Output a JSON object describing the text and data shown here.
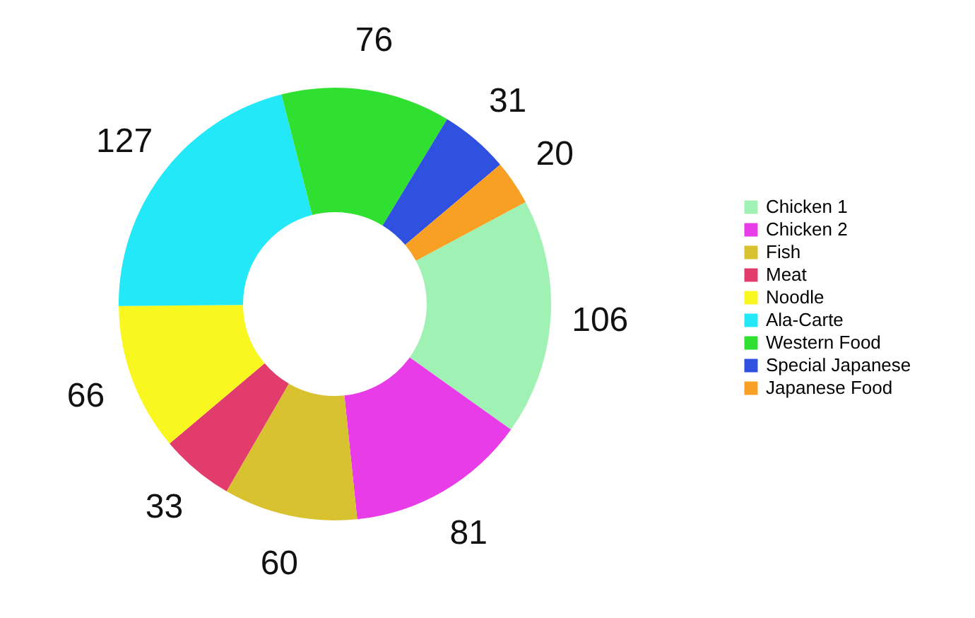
{
  "chart_data": {
    "type": "donut",
    "categories": [
      "Chicken 1",
      "Chicken 2",
      "Fish",
      "Meat",
      "Noodle",
      "Ala-Carte",
      "Western Food",
      "Special Japanese",
      "Japanese Food"
    ],
    "values": [
      106,
      81,
      60,
      33,
      66,
      127,
      76,
      31,
      20
    ],
    "colors": [
      "#a0f2b4",
      "#e83ce8",
      "#d9c230",
      "#e23c6c",
      "#f8f820",
      "#22e8f8",
      "#30e030",
      "#3050e0",
      "#f8a024"
    ],
    "data_labels": true,
    "legend": "right"
  }
}
